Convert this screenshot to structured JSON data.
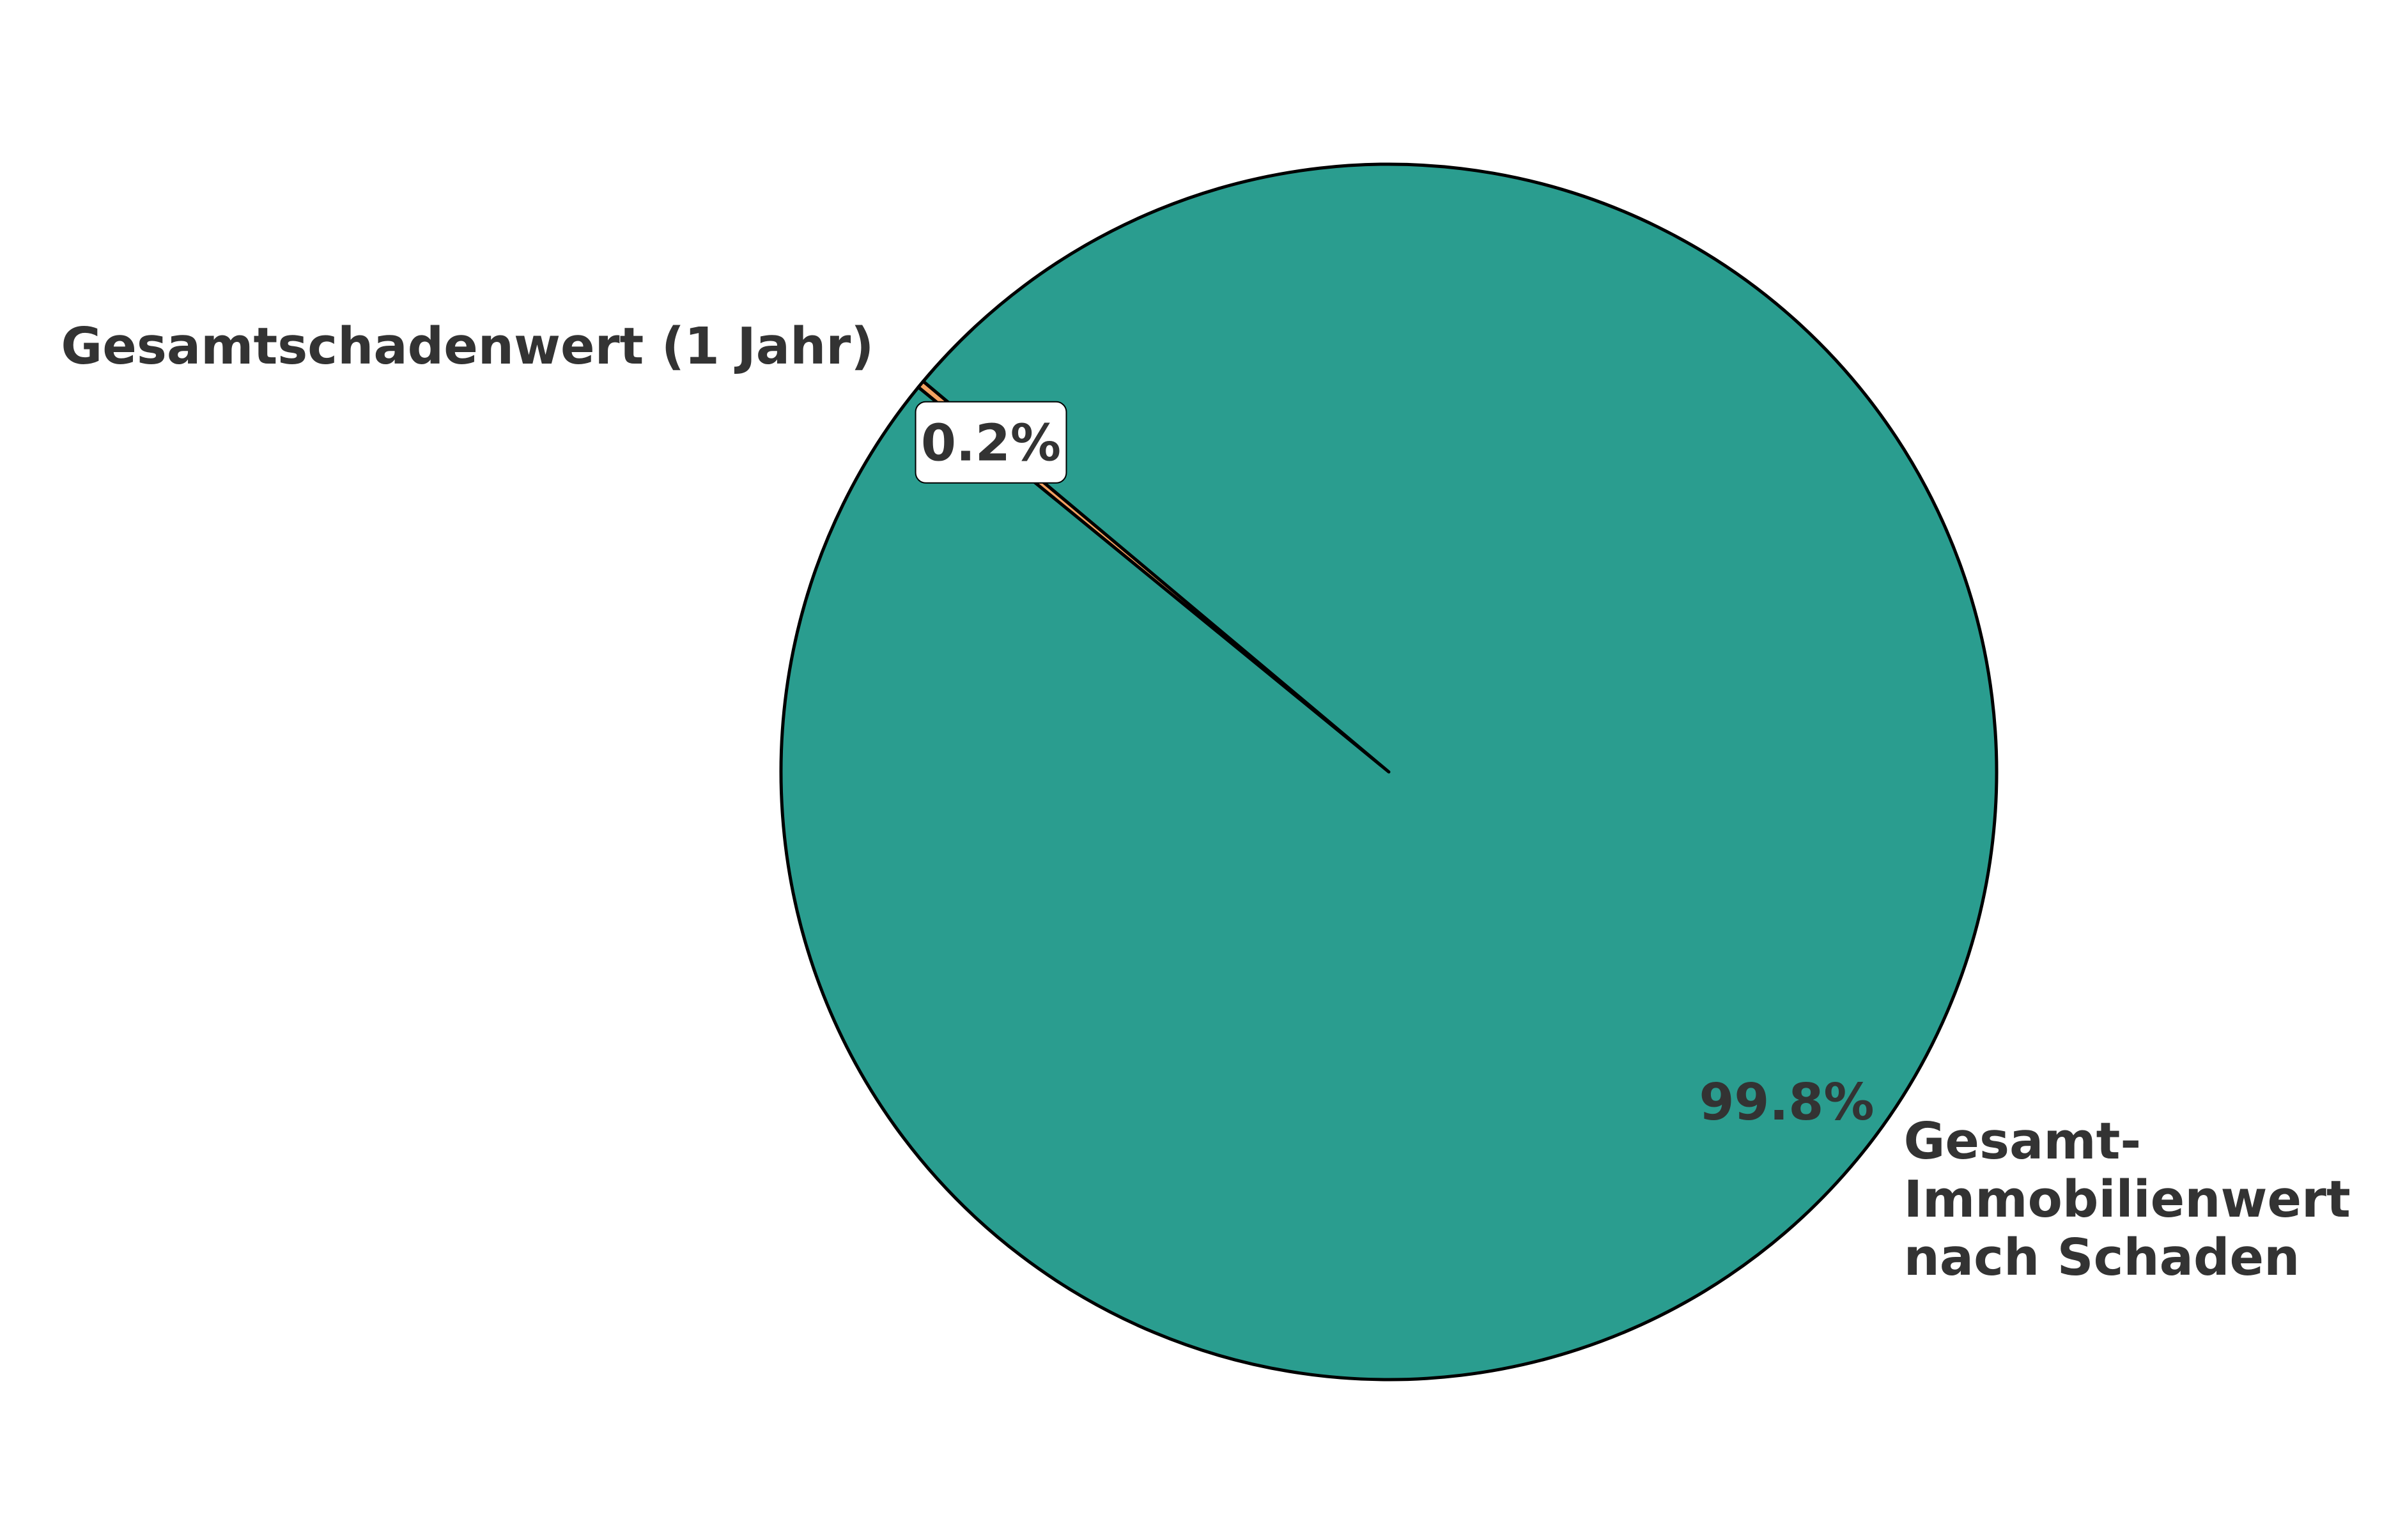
{
  "chart_data": {
    "type": "pie",
    "slices": [
      {
        "label": "Gesamtschadenwert (1 Jahr)",
        "label_lines": [
          "Gesamtschadenwert (1 Jahr)"
        ],
        "value": 0.2,
        "pct_label": "0.2%",
        "color": "#f4a261",
        "pct_boxed": true
      },
      {
        "label": "Gesamt-Immobilienwert nach Schaden",
        "label_lines": [
          "Gesamt-",
          "Immobilienwert",
          "nach Schaden"
        ],
        "value": 99.8,
        "pct_label": "99.8%",
        "color": "#2a9d8f",
        "pct_boxed": false
      }
    ],
    "start_angle_deg": 140,
    "counterclock": true,
    "edge_color": "#000000",
    "text_color": "#333333"
  }
}
